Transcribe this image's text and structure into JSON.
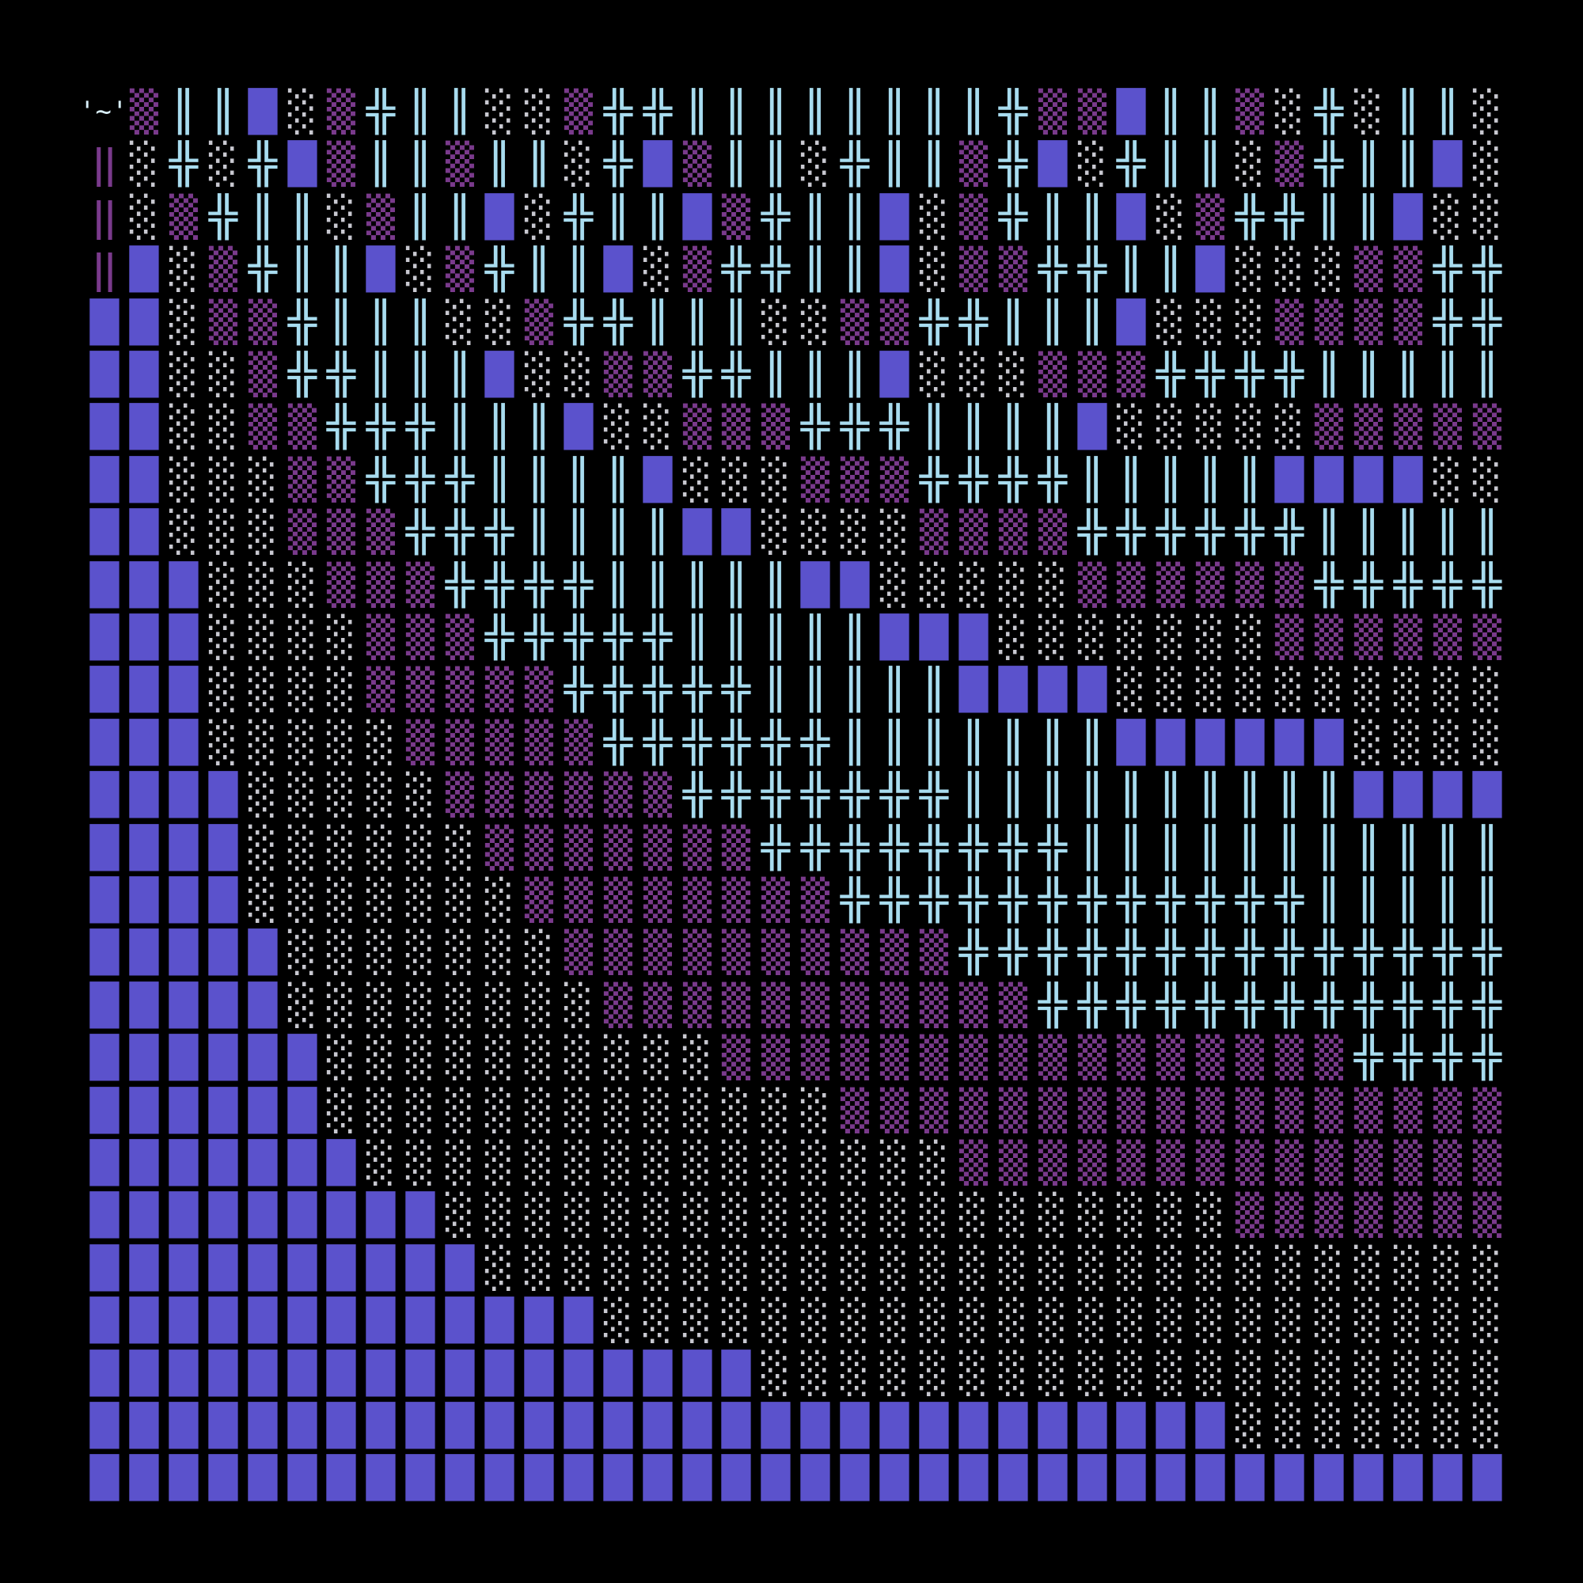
{
  "grid": {
    "player": "'~'",
    "palette": {
      "█": "#5b52cc",
      "░": "#c8c8d0",
      "▒": "#7a3a8c",
      "╬": "#a8dcef",
      "║": "#a8dcef",
      "‖": "#7a3a8c"
    },
    "rows": [
      "▒║║█░▒╬║║░░▒╬╬║║║║║║║║╬▒▒█║║▒░╬░║║░",
      "‖░╬░╬█▒║║▒║║░╬█▒║║░╬║║▒╬█░╬║║░▒╬║║█░",
      "‖░▒╬║║░▒║║█░╬║║█▒╬║║█░▒╬║║█░▒╬╬║║█░░",
      "‖█░▒╬║║█░▒╬║║█░▒╬╬║║█░▒▒╬╬║║█░░░▒▒╬╬",
      "██░▒▒╬║║║░░▒╬╬║║║░░▒▒╬╬║║║█░░░▒▒▒▒╬╬",
      "██░░▒╬╬║║║█░░▒▒╬╬║║║█░░░▒▒▒╬╬╬╬║║║║║",
      "██░░▒▒╬╬╬║║║█░░▒▒▒╬╬╬║║║║█░░░░░▒▒▒▒▒",
      "██░░░▒▒╬╬╬║║║║█░░░▒▒▒╬╬╬╬║║║║║████░░",
      "██░░░▒▒▒╬╬╬║║║║██░░░░▒▒▒▒╬╬╬╬╬╬║║║║║",
      "███░░░▒▒▒╬╬╬╬║║║║║██░░░░░▒▒▒▒▒▒╬╬╬╬╬",
      "███░░░░▒▒▒╬╬╬╬╬║║║║║███░░░░░░░▒▒▒▒▒▒",
      "███░░░░▒▒▒▒▒╬╬╬╬╬║║║║║████░░░░░░░░░░",
      "███░░░░░▒▒▒▒▒╬╬╬╬╬╬║║║║║║║██████░░░░",
      "████░░░░░▒▒▒▒▒▒╬╬╬╬╬╬╬║║║║║║║║║║████",
      "████░░░░░░▒▒▒▒▒▒▒╬╬╬╬╬╬╬╬║║║║║║║║║║║",
      "████░░░░░░░▒▒▒▒▒▒▒▒╬╬╬╬╬╬╬╬╬╬╬╬║║║║║",
      "█████░░░░░░░▒▒▒▒▒▒▒▒▒▒╬╬╬╬╬╬╬╬╬╬╬╬╬╬",
      "█████░░░░░░░░▒▒▒▒▒▒▒▒▒▒▒╬╬╬╬╬╬╬╬╬╬╬╬",
      "██████░░░░░░░░░░▒▒▒▒▒▒▒▒▒▒▒▒▒▒▒▒╬╬╬╬",
      "██████░░░░░░░░░░░░░▒▒▒▒▒▒▒▒▒▒▒▒▒▒▒▒▒",
      "███████░░░░░░░░░░░░░░░▒▒▒▒▒▒▒▒▒▒▒▒▒▒",
      "█████████░░░░░░░░░░░░░░░░░░░░▒▒▒▒▒▒▒",
      "██████████░░░░░░░░░░░░░░░░░░░░░░░░░░",
      "█████████████░░░░░░░░░░░░░░░░░░░░░░░",
      "█████████████████░░░░░░░░░░░░░░░░░░░",
      "█████████████████████████████░░░░░░░",
      "████████████████████████████████████"
    ]
  }
}
